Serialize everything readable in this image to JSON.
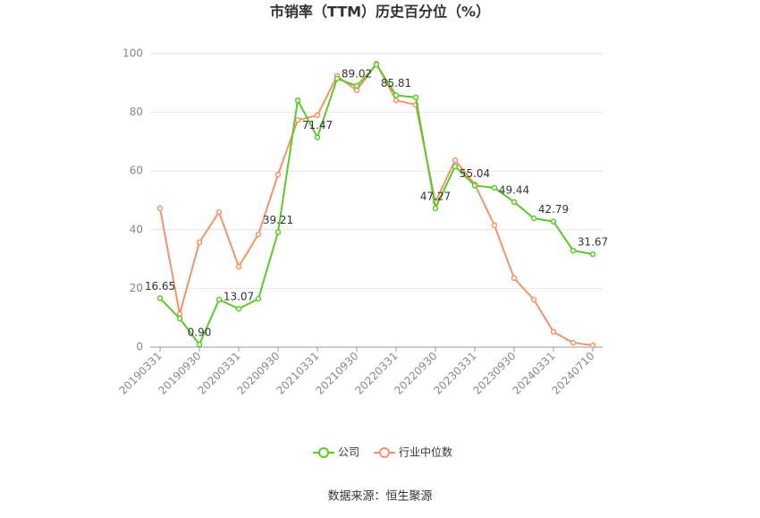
{
  "chart_data": {
    "type": "line",
    "title": "市销率（TTM）历史百分位（%）",
    "source": "数据来源：恒生聚源",
    "categories": [
      "20190331",
      null,
      "20190930",
      null,
      "20200331",
      null,
      "20200930",
      null,
      "20210331",
      null,
      "20210930",
      null,
      "20220331",
      null,
      "20220930",
      null,
      "20230331",
      null,
      "20230930",
      null,
      "20240331",
      null,
      "20240710"
    ],
    "series": [
      {
        "name": "公司",
        "color": "#5cc92b",
        "values": [
          16.65,
          9.8,
          0.9,
          16.2,
          13.07,
          16.5,
          39.21,
          84.1,
          71.47,
          91.5,
          89.02,
          96.3,
          85.81,
          85.1,
          47.27,
          61.6,
          55.04,
          54.3,
          49.44,
          43.9,
          42.79,
          32.9,
          31.67
        ],
        "value_labels": [
          "16.65",
          null,
          "0.90",
          null,
          "13.07",
          null,
          "39.21",
          null,
          "71.47",
          null,
          "89.02",
          null,
          "85.81",
          null,
          "47.27",
          null,
          "55.04",
          null,
          "49.44",
          null,
          "42.79",
          null,
          "31.67"
        ]
      },
      {
        "name": "行业中位数",
        "color": "#f4936a",
        "values": [
          47.3,
          11.3,
          35.7,
          46.0,
          27.4,
          38.4,
          58.8,
          77.4,
          79.0,
          92.4,
          87.5,
          96.6,
          84.1,
          82.6,
          49.4,
          63.7,
          55.5,
          41.5,
          23.5,
          16.2,
          5.2,
          1.5,
          0.6
        ]
      }
    ],
    "ylim": [
      0,
      100
    ],
    "yticks": [
      0,
      20,
      40,
      60,
      80,
      100
    ],
    "grid": true
  }
}
